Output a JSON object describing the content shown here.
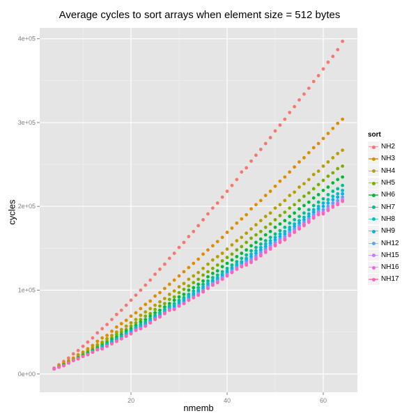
{
  "chart_data": {
    "type": "scatter",
    "title": "Average cycles to sort arrays when element size = 512 bytes",
    "xlabel": "nmemb",
    "ylabel": "cycles",
    "xlim": [
      1,
      67.1
    ],
    "ylim": [
      -21800,
      413000
    ],
    "x_ticks": [
      20,
      40,
      60
    ],
    "x_tick_labels": [
      "20",
      "40",
      "60"
    ],
    "y_ticks": [
      0,
      100000,
      200000,
      300000,
      400000
    ],
    "y_tick_labels": [
      "0e+00",
      "1e+05",
      "2e+05",
      "3e+05",
      "4e+05"
    ],
    "grid": true,
    "legend_title": "sort",
    "legend_position": "right",
    "x_start": 4,
    "x_step": 1,
    "value_multiplier": 1000,
    "series": [
      {
        "name": "NH2",
        "color": "#F8766D",
        "values": [
          7,
          11,
          15,
          19,
          24,
          28,
          33,
          38,
          43,
          49,
          54,
          59,
          65,
          71,
          76,
          82,
          88,
          94,
          100,
          106,
          112,
          119,
          125,
          131,
          138,
          144,
          151,
          157,
          164,
          170,
          177,
          184,
          191,
          198,
          204,
          211,
          218,
          225,
          232,
          241,
          246,
          254,
          261,
          268,
          275,
          282,
          290,
          297,
          304,
          312,
          319,
          327,
          334,
          341,
          349,
          356,
          364,
          372,
          379,
          387,
          397
        ]
      },
      {
        "name": "NH3",
        "color": "#DE8C00",
        "values": [
          6,
          10,
          13,
          16,
          19,
          23,
          26,
          30,
          34,
          39,
          43,
          46,
          51,
          56,
          60,
          64,
          69,
          73,
          78,
          83,
          87,
          93,
          97,
          102,
          107,
          112,
          117,
          122,
          127,
          132,
          137,
          143,
          148,
          153,
          158,
          163,
          169,
          174,
          180,
          185,
          190,
          197,
          202,
          207,
          213,
          218,
          224,
          230,
          235,
          241,
          247,
          253,
          258,
          264,
          270,
          275,
          281,
          287,
          293,
          299,
          304
        ]
      },
      {
        "name": "NH4",
        "color": "#B79F00",
        "values": [
          6,
          9,
          12,
          15,
          18,
          21,
          24,
          28,
          31,
          35,
          38,
          42,
          46,
          50,
          53,
          57,
          61,
          65,
          70,
          74,
          78,
          82,
          86,
          90,
          95,
          99,
          104,
          108,
          113,
          117,
          121,
          126,
          131,
          136,
          140,
          144,
          149,
          154,
          159,
          163,
          168,
          173,
          178,
          183,
          188,
          192,
          198,
          202,
          207,
          213,
          217,
          223,
          227,
          232,
          238,
          242,
          248,
          253,
          258,
          263,
          267
        ]
      },
      {
        "name": "NH5",
        "color": "#7CAE00",
        "values": [
          6,
          9,
          11,
          14,
          17,
          20,
          23,
          26,
          29,
          33,
          36,
          39,
          43,
          47,
          50,
          53,
          57,
          61,
          65,
          69,
          72,
          77,
          81,
          84,
          89,
          92,
          97,
          101,
          105,
          109,
          113,
          118,
          122,
          126,
          130,
          135,
          139,
          143,
          148,
          152,
          157,
          162,
          166,
          170,
          175,
          179,
          184,
          189,
          193,
          198,
          202,
          207,
          212,
          216,
          221,
          226,
          231,
          236,
          240,
          245,
          248
        ]
      },
      {
        "name": "NH6",
        "color": "#00BA38",
        "values": [
          6,
          8,
          11,
          13,
          16,
          19,
          22,
          25,
          28,
          31,
          34,
          37,
          41,
          44,
          47,
          51,
          54,
          58,
          62,
          65,
          69,
          73,
          76,
          80,
          84,
          88,
          92,
          95,
          100,
          103,
          107,
          111,
          116,
          120,
          123,
          128,
          132,
          136,
          140,
          144,
          148,
          153,
          157,
          161,
          166,
          170,
          175,
          179,
          183,
          188,
          192,
          197,
          201,
          205,
          210,
          214,
          219,
          223,
          228,
          232,
          235
        ]
      },
      {
        "name": "NH7",
        "color": "#00C08B",
        "values": [
          6,
          8,
          10,
          13,
          16,
          18,
          21,
          24,
          27,
          30,
          33,
          36,
          39,
          42,
          45,
          49,
          52,
          56,
          59,
          62,
          66,
          70,
          73,
          77,
          81,
          84,
          88,
          91,
          95,
          99,
          103,
          107,
          111,
          115,
          118,
          122,
          126,
          130,
          134,
          138,
          142,
          147,
          151,
          155,
          159,
          163,
          167,
          171,
          175,
          180,
          184,
          188,
          192,
          196,
          201,
          205,
          209,
          214,
          218,
          221,
          225
        ]
      },
      {
        "name": "NH8",
        "color": "#00BFC4",
        "values": [
          6,
          8,
          10,
          13,
          16,
          18,
          21,
          23,
          26,
          29,
          32,
          35,
          38,
          41,
          44,
          48,
          51,
          55,
          57,
          60,
          64,
          68,
          71,
          75,
          79,
          82,
          86,
          89,
          93,
          96,
          100,
          104,
          108,
          112,
          115,
          119,
          123,
          127,
          131,
          134,
          138,
          143,
          147,
          151,
          155,
          159,
          163,
          167,
          170,
          175,
          179,
          183,
          187,
          191,
          196,
          200,
          204,
          208,
          212,
          215,
          219
        ]
      },
      {
        "name": "NH9",
        "color": "#00B4F0",
        "values": [
          6,
          8,
          10,
          13,
          16,
          18,
          21,
          23,
          26,
          29,
          31,
          34,
          37,
          40,
          43,
          47,
          50,
          54,
          56,
          59,
          63,
          67,
          70,
          74,
          78,
          80,
          84,
          87,
          91,
          94,
          98,
          102,
          106,
          110,
          113,
          117,
          121,
          125,
          129,
          132,
          136,
          140,
          144,
          148,
          152,
          156,
          160,
          164,
          167,
          172,
          176,
          180,
          184,
          188,
          193,
          197,
          200,
          204,
          208,
          211,
          215
        ]
      },
      {
        "name": "NH12",
        "color": "#619CFF",
        "values": [
          6,
          8,
          10,
          13,
          16,
          18,
          21,
          23,
          26,
          29,
          30,
          33,
          36,
          39,
          42,
          46,
          49,
          53,
          55,
          58,
          62,
          66,
          69,
          73,
          77,
          78,
          82,
          85,
          89,
          92,
          96,
          100,
          104,
          108,
          111,
          115,
          119,
          123,
          127,
          130,
          134,
          137,
          141,
          145,
          149,
          153,
          157,
          161,
          164,
          169,
          173,
          177,
          181,
          185,
          190,
          194,
          196,
          200,
          204,
          207,
          211
        ]
      },
      {
        "name": "NH15",
        "color": "#C77CFF",
        "values": [
          6,
          8,
          10,
          13,
          16,
          18,
          21,
          23,
          26,
          29,
          30,
          33,
          36,
          39,
          42,
          45,
          48,
          52,
          54,
          57,
          61,
          65,
          68,
          72,
          76,
          77,
          81,
          84,
          88,
          91,
          95,
          99,
          103,
          107,
          110,
          114,
          118,
          122,
          126,
          129,
          132,
          135,
          139,
          143,
          147,
          151,
          155,
          159,
          162,
          167,
          171,
          175,
          179,
          183,
          188,
          192,
          193,
          197,
          201,
          204,
          208
        ]
      },
      {
        "name": "NH16",
        "color": "#F564E3",
        "values": [
          6,
          8,
          10,
          13,
          16,
          18,
          21,
          23,
          26,
          29,
          30,
          33,
          36,
          39,
          42,
          45,
          48,
          52,
          54,
          57,
          61,
          65,
          68,
          72,
          76,
          77,
          81,
          84,
          88,
          91,
          94,
          98,
          102,
          106,
          109,
          113,
          117,
          121,
          125,
          128,
          131,
          134,
          138,
          142,
          146,
          150,
          154,
          158,
          161,
          166,
          170,
          174,
          178,
          182,
          187,
          191,
          192,
          196,
          200,
          203,
          207
        ]
      },
      {
        "name": "NH17",
        "color": "#FF64B0",
        "values": [
          6,
          8,
          10,
          13,
          16,
          18,
          21,
          23,
          26,
          29,
          30,
          33,
          36,
          39,
          42,
          45,
          48,
          52,
          54,
          57,
          61,
          65,
          68,
          72,
          76,
          77,
          81,
          84,
          88,
          91,
          94,
          98,
          102,
          106,
          109,
          113,
          117,
          121,
          125,
          128,
          130,
          133,
          137,
          141,
          145,
          149,
          153,
          157,
          160,
          165,
          169,
          173,
          177,
          181,
          186,
          190,
          191,
          195,
          199,
          202,
          206
        ]
      }
    ]
  }
}
